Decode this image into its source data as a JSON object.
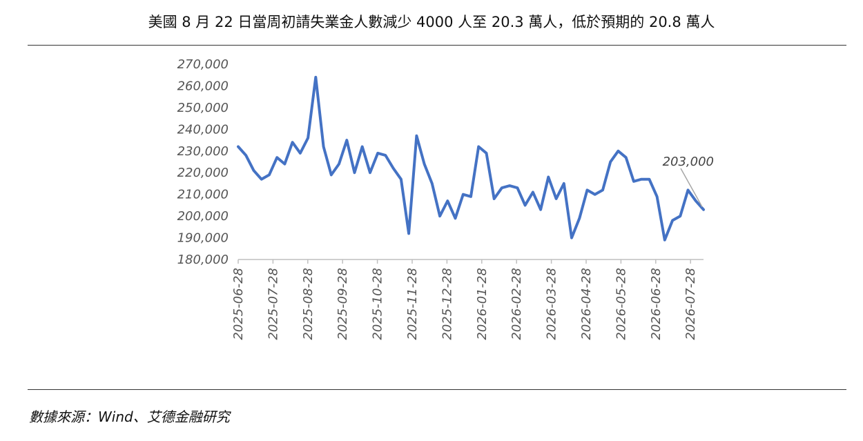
{
  "header": {
    "title": "美國 8 月 22 日當周初請失業金人數減少 4000 人至 20.3 萬人，低於預期的 20.8 萬人"
  },
  "footer": {
    "source": "數據來源：Wind、艾德金融研究"
  },
  "chart_data": {
    "type": "line",
    "title": "美國 8 月 22 日當周初請失業金人數減少 4000 人至 20.3 萬人，低於預期的 20.8 萬人",
    "xlabel": "",
    "ylabel": "",
    "ylim": [
      180000,
      270000
    ],
    "y_ticks": [
      180000,
      190000,
      200000,
      210000,
      220000,
      230000,
      240000,
      250000,
      260000,
      270000
    ],
    "y_tick_labels": [
      "180,000",
      "190,000",
      "200,000",
      "210,000",
      "220,000",
      "230,000",
      "240,000",
      "250,000",
      "260,000",
      "270,000"
    ],
    "x_tick_labels": [
      "2025-06-28",
      "2025-07-28",
      "2025-08-28",
      "2025-09-28",
      "2025-10-28",
      "2025-11-28",
      "2025-12-28",
      "2026-01-28",
      "2026-02-28",
      "2026-03-28",
      "2026-04-28",
      "2026-05-28",
      "2026-06-28",
      "2026-07-28"
    ],
    "line_color": "#4472C4",
    "grid": false,
    "annotation": {
      "text": "203,000",
      "value": 203000
    },
    "series": [
      {
        "values": [
          232000,
          228000,
          221000,
          217000,
          219000,
          227000,
          224000,
          234000,
          229000,
          236000,
          264000,
          232000,
          219000,
          224000,
          235000,
          220000,
          232000,
          220000,
          229000,
          228000,
          222000,
          217000,
          192000,
          237000,
          224000,
          215000,
          200000,
          207000,
          199000,
          210000,
          209000,
          232000,
          229000,
          208000,
          213000,
          214000,
          213000,
          205000,
          211000,
          203000,
          218000,
          208000,
          215000,
          190000,
          199000,
          212000,
          210000,
          212000,
          225000,
          230000,
          227000,
          216000,
          217000,
          217000,
          209000,
          189000,
          198000,
          200000,
          212000,
          207000,
          203000
        ]
      }
    ]
  }
}
